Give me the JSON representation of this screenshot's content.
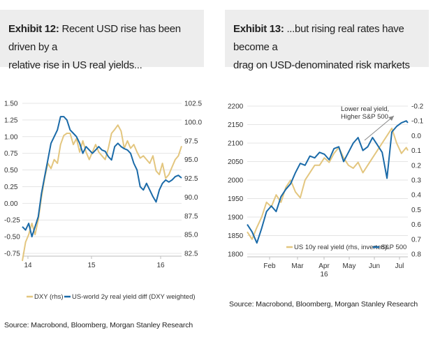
{
  "left": {
    "exhibit": "Exhibit 12:",
    "title_line1": "Recent USD rise has been driven by a",
    "title_line2": "relative rise in US real yields...",
    "source": "Source: Macrobond, Bloomberg, Morgan Stanley Research"
  },
  "right": {
    "exhibit": "Exhibit 13:",
    "title_line1": "...but rising real rates have become a",
    "title_line2": "drag on USD-denominated risk markets",
    "source": "Source: Macrobond, Bloomberg, Morgan Stanley Research"
  },
  "chart_data": [
    {
      "type": "line",
      "x_ticks": [
        "14",
        "15",
        "16"
      ],
      "left_axis": {
        "ticks": [
          "1.50",
          "1.25",
          "1.00",
          "0.75",
          "0.50",
          "0.25",
          "0.00",
          "-0.25",
          "-0.50",
          "-0.75"
        ],
        "ylim": [
          -0.75,
          1.5
        ]
      },
      "right_axis": {
        "ticks": [
          "102.5",
          "100.0",
          "97.5",
          "95.0",
          "92.5",
          "90.0",
          "87.5",
          "85.0",
          "82.5"
        ],
        "ylim": [
          82.5,
          102.5
        ]
      },
      "legend": [
        "DXY (rhs)",
        "US-world 2y real yield diff (DXY weighted)"
      ],
      "series": [
        {
          "name": "DXY (rhs)",
          "axis": "right",
          "color": "#e3c67f",
          "x": [
            0,
            2,
            4,
            6,
            8,
            10,
            12,
            14,
            16,
            18,
            20,
            22,
            24,
            26,
            28,
            30,
            32,
            34,
            36,
            38,
            40,
            42,
            44,
            46,
            48,
            50,
            52,
            54,
            56,
            58,
            60,
            62,
            64,
            66,
            68,
            70,
            72,
            74,
            76,
            78,
            80,
            82,
            84,
            86,
            88,
            90,
            92,
            94,
            96,
            98,
            100
          ],
          "values": [
            81.5,
            84,
            85,
            86.5,
            85,
            87,
            90,
            92.5,
            94.5,
            93.8,
            95,
            94.5,
            97,
            98.2,
            98.5,
            98.5,
            97,
            97.8,
            96,
            97.5,
            96,
            95,
            96,
            97,
            96,
            95.5,
            95,
            96.5,
            98.5,
            99,
            99.6,
            98.8,
            96.5,
            97.5,
            96.5,
            97,
            96,
            95.2,
            95.5,
            95,
            94.5,
            95.5,
            93.5,
            93,
            94.5,
            92.5,
            93,
            94,
            95,
            95.5,
            96.8
          ]
        },
        {
          "name": "US-world 2y real yield diff (DXY weighted)",
          "axis": "left",
          "color": "#1a6aa8",
          "x": [
            0,
            2,
            4,
            6,
            8,
            10,
            12,
            14,
            16,
            18,
            20,
            22,
            24,
            26,
            28,
            30,
            32,
            34,
            36,
            38,
            40,
            42,
            44,
            46,
            48,
            50,
            52,
            54,
            56,
            58,
            60,
            62,
            64,
            66,
            68,
            70,
            72,
            74,
            76,
            78,
            80,
            82,
            84,
            86,
            88,
            90,
            92,
            94,
            96,
            98,
            100
          ],
          "values": [
            -0.35,
            -0.4,
            -0.3,
            -0.5,
            -0.35,
            -0.2,
            0.15,
            0.4,
            0.65,
            0.9,
            1.0,
            1.1,
            1.3,
            1.3,
            1.25,
            1.1,
            1.05,
            1.0,
            0.9,
            0.75,
            0.85,
            0.8,
            0.75,
            0.8,
            0.85,
            0.8,
            0.78,
            0.7,
            0.65,
            0.85,
            0.9,
            0.85,
            0.82,
            0.8,
            0.75,
            0.6,
            0.5,
            0.25,
            0.2,
            0.3,
            0.2,
            0.1,
            0.02,
            0.2,
            0.3,
            0.35,
            0.32,
            0.35,
            0.4,
            0.42,
            0.38
          ]
        }
      ]
    },
    {
      "type": "line",
      "x_ticks": [
        "Feb",
        "Mar",
        "Apr",
        "May",
        "Jun",
        "Jul"
      ],
      "x_year_label": "16",
      "left_axis": {
        "ticks": [
          "2200",
          "2150",
          "2100",
          "2050",
          "2000",
          "1950",
          "1900",
          "1850",
          "1800"
        ],
        "ylim": [
          1800,
          2200
        ]
      },
      "right_axis": {
        "ticks": [
          "-0.2",
          "-0.1",
          "0.0",
          "0.1",
          "0.2",
          "0.3",
          "0.4",
          "0.5",
          "0.6",
          "0.7",
          "0.8"
        ],
        "ylim": [
          -0.2,
          0.8
        ],
        "inverted": true
      },
      "legend": [
        "US 10y real yield (rhs, inverted)",
        "S&P 500"
      ],
      "annotation": [
        "Lower real yield,",
        "Higher S&P 500"
      ],
      "series": [
        {
          "name": "US 10y real yield (rhs, inverted)",
          "axis": "right",
          "color": "#e3c67f",
          "x": [
            0,
            3,
            6,
            9,
            12,
            15,
            18,
            21,
            24,
            27,
            30,
            33,
            36,
            39,
            42,
            45,
            48,
            51,
            54,
            57,
            60,
            63,
            66,
            69,
            72,
            75,
            78,
            81,
            84,
            87,
            90,
            93,
            96,
            99,
            100
          ],
          "values": [
            0.65,
            0.7,
            0.62,
            0.55,
            0.45,
            0.48,
            0.4,
            0.45,
            0.35,
            0.3,
            0.38,
            0.42,
            0.3,
            0.25,
            0.2,
            0.2,
            0.15,
            0.18,
            0.12,
            0.08,
            0.15,
            0.2,
            0.22,
            0.18,
            0.25,
            0.2,
            0.15,
            0.1,
            0.05,
            0.0,
            -0.05,
            0.05,
            0.12,
            0.08,
            0.1
          ]
        },
        {
          "name": "S&P 500",
          "axis": "left",
          "color": "#1a6aa8",
          "x": [
            0,
            3,
            6,
            9,
            12,
            15,
            18,
            21,
            24,
            27,
            30,
            33,
            36,
            39,
            42,
            45,
            48,
            51,
            54,
            57,
            60,
            63,
            66,
            69,
            72,
            75,
            78,
            81,
            84,
            87,
            90,
            93,
            96,
            99,
            100
          ],
          "values": [
            1880,
            1860,
            1830,
            1870,
            1915,
            1930,
            1915,
            1955,
            1975,
            1990,
            2020,
            2045,
            2040,
            2065,
            2060,
            2075,
            2070,
            2055,
            2085,
            2090,
            2050,
            2075,
            2100,
            2115,
            2080,
            2090,
            2115,
            2095,
            2075,
            2005,
            2130,
            2145,
            2155,
            2160,
            2155
          ]
        }
      ]
    }
  ]
}
